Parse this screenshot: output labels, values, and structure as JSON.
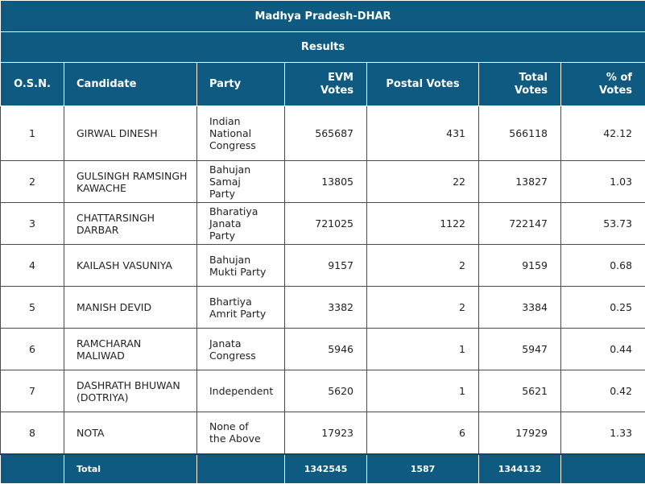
{
  "title": "Madhya Pradesh-DHAR",
  "subtitle": "Results",
  "headers": {
    "osn": "O.S.N.",
    "candidate": "Candidate",
    "party": "Party",
    "evm": "EVM Votes",
    "postal": "Postal Votes",
    "total": "Total Votes",
    "percent": "% of Votes"
  },
  "rows": [
    {
      "osn": "1",
      "candidate": "GIRWAL DINESH",
      "party": "Indian National Congress",
      "evm": "565687",
      "postal": "431",
      "total": "566118",
      "percent": "42.12"
    },
    {
      "osn": "2",
      "candidate": "GULSINGH RAMSINGH KAWACHE",
      "party": "Bahujan Samaj Party",
      "evm": "13805",
      "postal": "22",
      "total": "13827",
      "percent": "1.03"
    },
    {
      "osn": "3",
      "candidate": "CHATTARSINGH DARBAR",
      "party": "Bharatiya Janata Party",
      "evm": "721025",
      "postal": "1122",
      "total": "722147",
      "percent": "53.73"
    },
    {
      "osn": "4",
      "candidate": "KAILASH VASUNIYA",
      "party": "Bahujan Mukti Party",
      "evm": "9157",
      "postal": "2",
      "total": "9159",
      "percent": "0.68"
    },
    {
      "osn": "5",
      "candidate": "MANISH DEVID",
      "party": "Bhartiya Amrit Party",
      "evm": "3382",
      "postal": "2",
      "total": "3384",
      "percent": "0.25"
    },
    {
      "osn": "6",
      "candidate": "RAMCHARAN MALIWAD",
      "party": "Janata Congress",
      "evm": "5946",
      "postal": "1",
      "total": "5947",
      "percent": "0.44"
    },
    {
      "osn": "7",
      "candidate": "DASHRATH BHUWAN (DOTRIYA)",
      "party": "Independent",
      "evm": "5620",
      "postal": "1",
      "total": "5621",
      "percent": "0.42"
    },
    {
      "osn": "8",
      "candidate": "NOTA",
      "party": "None of the Above",
      "evm": "17923",
      "postal": "6",
      "total": "17929",
      "percent": "1.33"
    }
  ],
  "footer": {
    "label": "Total",
    "evm": "1342545",
    "postal": "1587",
    "total": "1344132"
  },
  "colors": {
    "header_bg": "#0e5a80",
    "header_text": "#ffffff",
    "border": "#4a4a4a"
  }
}
